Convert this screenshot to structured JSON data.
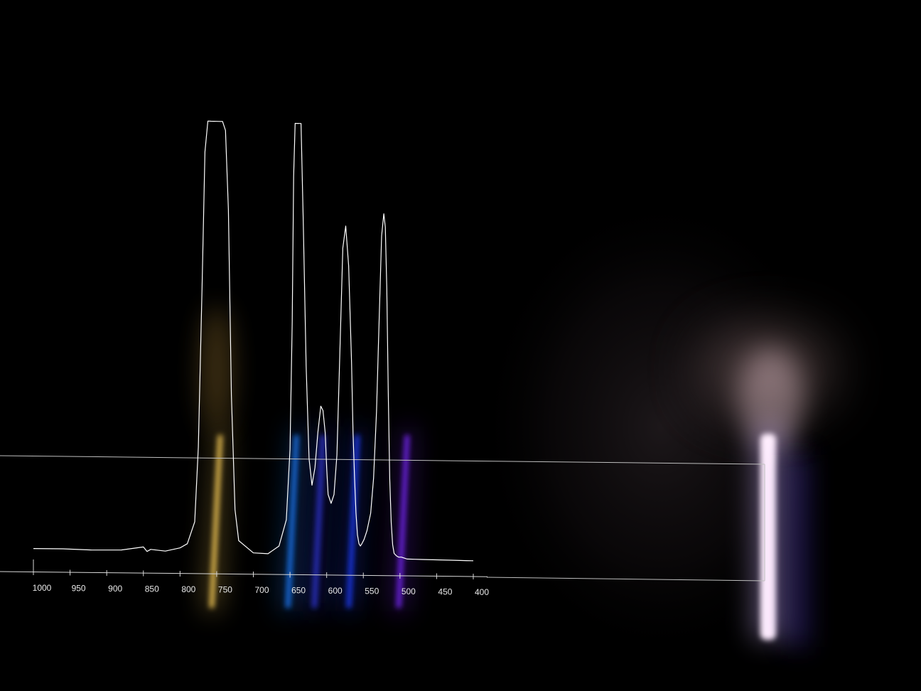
{
  "chart_data": {
    "type": "line",
    "title": "",
    "xlabel": "",
    "ylabel": "",
    "x_reversed": true,
    "xlim": [
      1000,
      400
    ],
    "ylim": [
      0,
      1
    ],
    "grid": false,
    "x_ticks": [
      1000,
      950,
      900,
      850,
      800,
      750,
      700,
      650,
      600,
      550,
      500,
      450,
      400
    ],
    "tick_labels": [
      "1000",
      "950",
      "900",
      "850",
      "800",
      "750",
      "700",
      "650",
      "600",
      "550",
      "500",
      "450",
      "400"
    ],
    "series": [
      {
        "color": "#ffffff",
        "x": [
          1000,
          960,
          920,
          880,
          850,
          845,
          840,
          820,
          800,
          790,
          780,
          775,
          770,
          766,
          762,
          758,
          754,
          750,
          746,
          742,
          738,
          734,
          730,
          725,
          720,
          700,
          680,
          665,
          655,
          650,
          647,
          645,
          643,
          641,
          639,
          637,
          635,
          632,
          628,
          624,
          620,
          616,
          612,
          608,
          605,
          602,
          600,
          598,
          594,
          590,
          586,
          582,
          578,
          574,
          570,
          566,
          564,
          562,
          560,
          558,
          556,
          554,
          552,
          549,
          545,
          540,
          536,
          532,
          528,
          525,
          522,
          520,
          518,
          516,
          514,
          512,
          510,
          508,
          505,
          502,
          500,
          498,
          496,
          494,
          492,
          490,
          486,
          480,
          470,
          450,
          430,
          410,
          400
        ],
        "y": [
          0.02,
          0.021,
          0.02,
          0.022,
          0.03,
          0.02,
          0.025,
          0.022,
          0.03,
          0.04,
          0.09,
          0.26,
          0.62,
          0.93,
          1.0,
          1.0,
          1.0,
          1.0,
          1.0,
          1.0,
          0.98,
          0.8,
          0.38,
          0.12,
          0.05,
          0.023,
          0.022,
          0.04,
          0.1,
          0.26,
          0.55,
          0.88,
          1.0,
          1.0,
          1.0,
          1.0,
          1.0,
          0.78,
          0.45,
          0.24,
          0.18,
          0.22,
          0.3,
          0.36,
          0.35,
          0.3,
          0.22,
          0.16,
          0.14,
          0.16,
          0.25,
          0.48,
          0.72,
          0.77,
          0.68,
          0.46,
          0.3,
          0.2,
          0.12,
          0.07,
          0.05,
          0.045,
          0.05,
          0.06,
          0.08,
          0.12,
          0.2,
          0.35,
          0.58,
          0.75,
          0.8,
          0.77,
          0.63,
          0.4,
          0.2,
          0.1,
          0.05,
          0.03,
          0.025,
          0.022,
          0.022,
          0.022,
          0.021,
          0.02,
          0.019,
          0.018,
          0.018,
          0.018,
          0.018,
          0.018,
          0.018,
          0.018,
          0.018
        ]
      }
    ],
    "background_color": "#000000",
    "axis_color": "#d9d9d9",
    "emission_bands": [
      {
        "wavelength": 752,
        "color": "#ffd25a"
      },
      {
        "wavelength": 648,
        "color": "#1f7fff"
      },
      {
        "wavelength": 612,
        "color": "#2e36d8"
      },
      {
        "wavelength": 565,
        "color": "#1a3cff"
      },
      {
        "wavelength": 497,
        "color": "#7a28ff"
      }
    ],
    "source_light_color": "#fff0ff"
  }
}
